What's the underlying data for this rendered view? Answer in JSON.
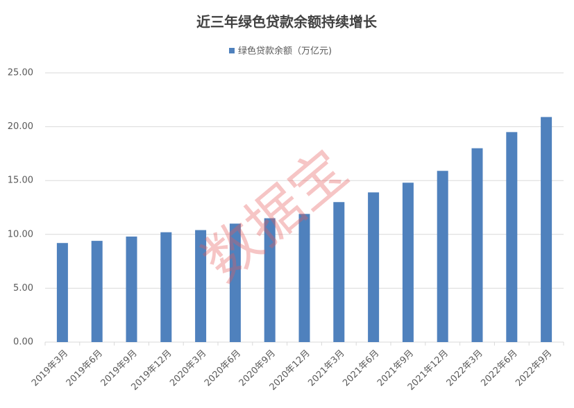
{
  "chart_data": {
    "type": "bar",
    "title": "近三年绿色贷款余额持续增长",
    "watermark": "数据宝",
    "categories": [
      "2019年3月",
      "2019年6月",
      "2019年9月",
      "2019年12月",
      "2020年3月",
      "2020年6月",
      "2020年9月",
      "2020年12月",
      "2021年3月",
      "2021年6月",
      "2021年9月",
      "2021年12月",
      "2022年3月",
      "2022年6月",
      "2022年9月"
    ],
    "series": [
      {
        "name": "绿色贷款余额（万亿元)",
        "color": "#4f81bd",
        "values": [
          9.2,
          9.4,
          9.8,
          10.2,
          10.4,
          11.0,
          11.5,
          11.9,
          13.0,
          13.9,
          14.8,
          15.9,
          18.0,
          19.5,
          20.9
        ]
      }
    ],
    "ylim": [
      0,
      25
    ],
    "yticks": [
      {
        "value": 0,
        "label": "0.00"
      },
      {
        "value": 5,
        "label": "5.00"
      },
      {
        "value": 10,
        "label": "10.00"
      },
      {
        "value": 15,
        "label": "15.00"
      },
      {
        "value": 20,
        "label": "20.00"
      },
      {
        "value": 25,
        "label": "25.00"
      }
    ],
    "grid": true
  }
}
